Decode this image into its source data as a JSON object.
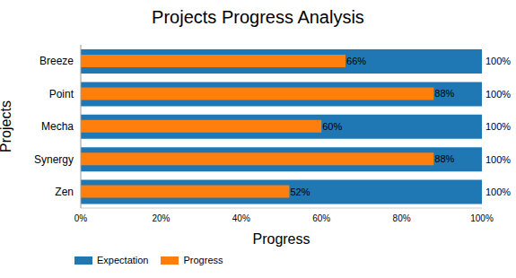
{
  "chart_data": {
    "type": "bar",
    "orientation": "horizontal",
    "title": "Projects Progress Analysis",
    "xlabel": "Progress",
    "ylabel": "Projects",
    "categories": [
      "Breeze",
      "Point",
      "Mecha",
      "Synergy",
      "Zen"
    ],
    "series": [
      {
        "name": "Expectation",
        "color": "#1f77b4",
        "values": [
          100,
          100,
          100,
          100,
          100
        ],
        "value_labels": [
          "100%",
          "100%",
          "100%",
          "100%",
          "100%"
        ]
      },
      {
        "name": "Progress",
        "color": "#ff7f0e",
        "values": [
          66,
          88,
          60,
          88,
          52
        ],
        "value_labels": [
          "66%",
          "88%",
          "60%",
          "88%",
          "52%"
        ]
      }
    ],
    "xlim": [
      0,
      100
    ],
    "xticks": [
      {
        "value": 0,
        "label": "0%"
      },
      {
        "value": 20,
        "label": "20%"
      },
      {
        "value": 40,
        "label": "40%"
      },
      {
        "value": 60,
        "label": "60%"
      },
      {
        "value": 80,
        "label": "80%"
      },
      {
        "value": 100,
        "label": "100%"
      }
    ],
    "data_labels": true,
    "legend": "bottom left",
    "grid": false
  }
}
